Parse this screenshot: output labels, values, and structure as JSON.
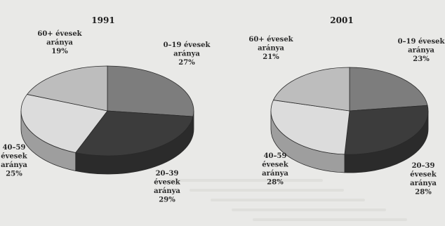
{
  "chart_data": [
    {
      "type": "pie",
      "title": "1991",
      "slices": [
        {
          "label_lines": [
            "0–19 évesek",
            "aránya",
            "27%"
          ],
          "value": 27,
          "color": "#7d7d7d"
        },
        {
          "label_lines": [
            "20–39",
            "évesek",
            "aránya",
            "29%"
          ],
          "value": 29,
          "color": "#3c3c3c"
        },
        {
          "label_lines": [
            "40–59",
            "évesek",
            "aránya",
            "25%"
          ],
          "value": 25,
          "color": "#dcdcdc"
        },
        {
          "label_lines": [
            "60+ évesek",
            "aránya",
            "19%"
          ],
          "value": 19,
          "color": "#bdbdbd"
        }
      ]
    },
    {
      "type": "pie",
      "title": "2001",
      "slices": [
        {
          "label_lines": [
            "0–19 évesek",
            "aránya",
            "23%"
          ],
          "value": 23,
          "color": "#7d7d7d"
        },
        {
          "label_lines": [
            "20–39",
            "évesek",
            "aránya",
            "28%"
          ],
          "value": 28,
          "color": "#3c3c3c"
        },
        {
          "label_lines": [
            "40–59",
            "évesek",
            "aránya",
            "28%"
          ],
          "value": 28,
          "color": "#dcdcdc"
        },
        {
          "label_lines": [
            "60+ évesek",
            "aránya",
            "21%"
          ],
          "value": 21,
          "color": "#bdbdbd"
        }
      ]
    }
  ],
  "colors": {
    "background": "#e9e9e7",
    "side_shade": "#555555"
  }
}
